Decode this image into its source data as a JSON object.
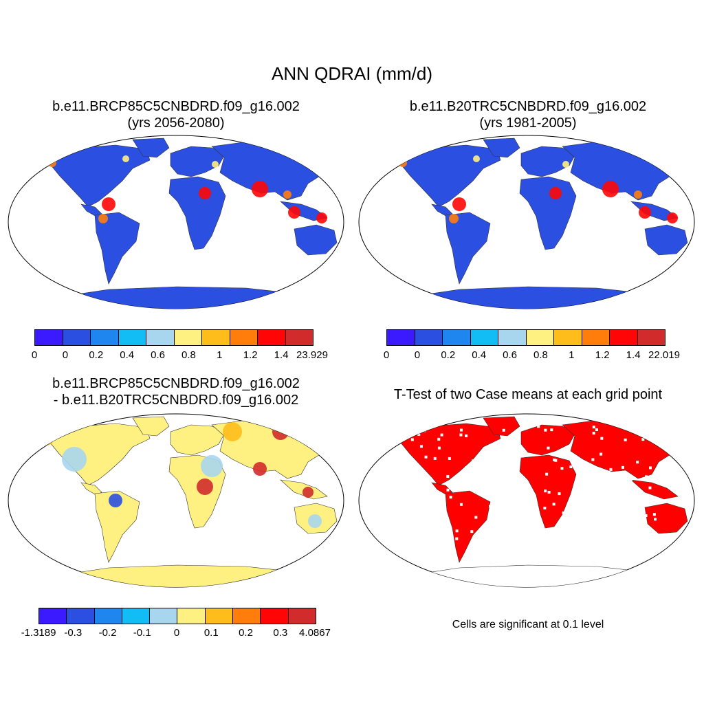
{
  "main_title": "ANN QDRAI (mm/d)",
  "panels": {
    "future": {
      "title_line1": "b.e11.BRCP85C5CNBDRD.f09_g16.002",
      "title_line2": "(yrs 2056-2080)"
    },
    "historical": {
      "title_line1": "b.e11.B20TRC5CNBDRD.f09_g16.002",
      "title_line2": "(yrs 1981-2005)"
    },
    "difference": {
      "title_line1": "b.e11.BRCP85C5CNBDRD.f09_g16.002",
      "title_line2": "- b.e11.B20TRC5CNBDRD.f09_g16.002"
    },
    "ttest": {
      "title": "T-Test of two Case means at each grid point",
      "note": "Cells are significant at 0.1 level"
    }
  },
  "colorbars": {
    "future": {
      "colors": [
        "#3c1aff",
        "#2b4fe0",
        "#1f86ef",
        "#12bdf5",
        "#a8d6ee",
        "#fff082",
        "#ffbd1b",
        "#ff7d0a",
        "#ff0505",
        "#d12b2b"
      ],
      "labels": [
        "0",
        "0",
        "0.2",
        "0.4",
        "0.6",
        "0.8",
        "1",
        "1.2",
        "1.4",
        "23.929"
      ]
    },
    "historical": {
      "colors": [
        "#3c1aff",
        "#2b4fe0",
        "#1f86ef",
        "#12bdf5",
        "#a8d6ee",
        "#fff082",
        "#ffbd1b",
        "#ff7d0a",
        "#ff0505",
        "#d12b2b"
      ],
      "labels": [
        "0",
        "0",
        "0.2",
        "0.4",
        "0.6",
        "0.8",
        "1",
        "1.2",
        "1.4",
        "22.019"
      ]
    },
    "difference": {
      "colors": [
        "#3c1aff",
        "#2b4fe0",
        "#1f86ef",
        "#12bdf5",
        "#a8d6ee",
        "#fff082",
        "#ffbd1b",
        "#ff7d0a",
        "#ff0505",
        "#d12b2b"
      ],
      "labels": [
        "-1.3189",
        "-0.3",
        "-0.2",
        "-0.1",
        "0",
        "0.1",
        "0.2",
        "0.3",
        "4.0867"
      ]
    }
  },
  "map_fills": {
    "future": {
      "land": "#2b4fe0",
      "hotspot": "#ff0505",
      "warm": "#ff7d0a",
      "mild": "#fff082"
    },
    "historical": {
      "land": "#2b4fe0",
      "hotspot": "#ff0505",
      "warm": "#ff7d0a",
      "mild": "#fff082"
    },
    "difference": {
      "land": "#fff082",
      "cool": "#a8d6ee",
      "warm": "#ffbd1b",
      "hot": "#d12b2b",
      "neg": "#2b4fe0"
    },
    "ttest": {
      "significant": "#ff0000"
    }
  }
}
